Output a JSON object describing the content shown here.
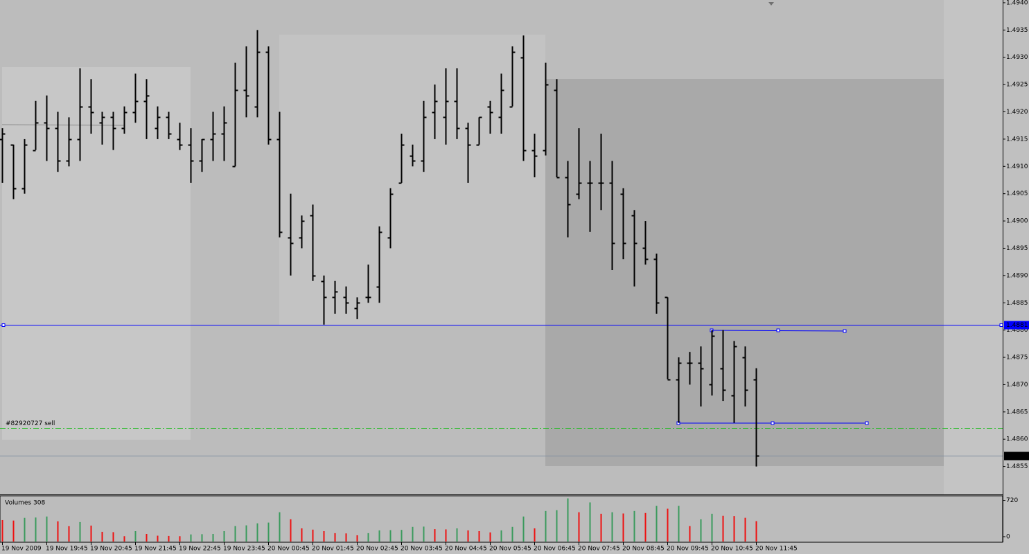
{
  "chart_data": {
    "type": "ohlc",
    "categories": [
      "19 Nov 2009",
      null,
      null,
      null,
      "19 Nov 19:45",
      null,
      null,
      null,
      "19 Nov 20:45",
      null,
      null,
      null,
      "19 Nov 21:45",
      null,
      null,
      null,
      "19 Nov 22:45",
      null,
      null,
      null,
      "19 Nov 23:45",
      null,
      null,
      null,
      "20 Nov 00:45",
      null,
      null,
      null,
      "20 Nov 01:45",
      null,
      null,
      null,
      "20 Nov 02:45",
      null,
      null,
      null,
      "20 Nov 03:45",
      null,
      null,
      null,
      "20 Nov 04:45",
      null,
      null,
      null,
      "20 Nov 05:45",
      null,
      null,
      null,
      "20 Nov 06:45",
      null,
      null,
      null,
      "20 Nov 07:45",
      null,
      null,
      null,
      "20 Nov 08:45",
      null,
      null,
      null,
      "20 Nov 09:45",
      null,
      null,
      null,
      "20 Nov 10:45",
      null,
      null,
      null,
      "20 Nov 11:45"
    ],
    "open": [
      1.4915,
      1.4914,
      1.4906,
      1.4913,
      1.4918,
      1.4917,
      1.4911,
      1.4915,
      1.4921,
      1.4918,
      1.4919,
      1.4917,
      1.492,
      1.4922,
      1.4917,
      1.4919,
      1.4915,
      1.4914,
      1.4911,
      1.4915,
      1.4916,
      1.491,
      1.4924,
      1.4921,
      1.4931,
      1.4915,
      1.4897,
      1.4897,
      1.4901,
      1.4889,
      1.4886,
      1.4886,
      1.4884,
      1.4886,
      1.4888,
      1.4897,
      1.4907,
      1.4912,
      1.4911,
      1.492,
      1.4919,
      1.4922,
      1.4917,
      1.4914,
      1.4921,
      1.4919,
      1.4921,
      1.493,
      1.4913,
      1.4913,
      1.4924,
      1.4908,
      1.4905,
      1.4907,
      1.4907,
      1.4907,
      1.4905,
      1.4901,
      1.4895,
      1.4893,
      1.4886,
      1.4871,
      1.4874,
      1.4874,
      1.487,
      1.4873,
      1.4868,
      1.4875,
      1.4871
    ],
    "high": [
      1.4917,
      1.4914,
      1.4915,
      1.4922,
      1.4923,
      1.492,
      1.4919,
      1.4928,
      1.4926,
      1.492,
      1.492,
      1.4921,
      1.4927,
      1.4926,
      1.4921,
      1.492,
      1.4918,
      1.4917,
      1.4915,
      1.492,
      1.4921,
      1.4929,
      1.4932,
      1.4935,
      1.4932,
      1.492,
      1.4905,
      1.4901,
      1.4903,
      1.489,
      1.4889,
      1.4888,
      1.4886,
      1.4892,
      1.4899,
      1.4906,
      1.4916,
      1.4914,
      1.4922,
      1.4925,
      1.4928,
      1.4928,
      1.4918,
      1.4919,
      1.4922,
      1.4927,
      1.4932,
      1.4934,
      1.4916,
      1.4929,
      1.4926,
      1.4911,
      1.4917,
      1.4911,
      1.4916,
      1.4911,
      1.4906,
      1.4902,
      1.49,
      1.4894,
      1.4886,
      1.4875,
      1.4876,
      1.4877,
      1.488,
      1.488,
      1.4878,
      1.4877,
      1.4873
    ],
    "low": [
      1.4907,
      1.4904,
      1.4905,
      1.4913,
      1.4911,
      1.4909,
      1.491,
      1.4911,
      1.4916,
      1.4914,
      1.4913,
      1.4916,
      1.4918,
      1.4915,
      1.4915,
      1.4915,
      1.4913,
      1.4907,
      1.4909,
      1.4911,
      1.4911,
      1.491,
      1.4919,
      1.4919,
      1.4914,
      1.4897,
      1.489,
      1.4895,
      1.4889,
      1.4881,
      1.4883,
      1.4883,
      1.4882,
      1.4885,
      1.4885,
      1.4895,
      1.4907,
      1.491,
      1.4909,
      1.4915,
      1.4914,
      1.4915,
      1.4907,
      1.4914,
      1.4916,
      1.4916,
      1.4921,
      1.4911,
      1.4908,
      1.4912,
      1.4908,
      1.4897,
      1.4904,
      1.4898,
      1.4902,
      1.4891,
      1.4893,
      1.4888,
      1.4892,
      1.4883,
      1.4871,
      1.4863,
      1.487,
      1.4866,
      1.4868,
      1.4867,
      1.4863,
      1.4866,
      1.4855
    ],
    "close": [
      1.4916,
      1.4906,
      1.4914,
      1.4918,
      1.4917,
      1.4911,
      1.4915,
      1.4921,
      1.492,
      1.4919,
      1.4917,
      1.492,
      1.4922,
      1.4923,
      1.4919,
      1.4916,
      1.4914,
      1.4911,
      1.4915,
      1.4916,
      1.4918,
      1.4924,
      1.4923,
      1.4931,
      1.4915,
      1.4898,
      1.4896,
      1.49,
      1.489,
      1.4886,
      1.4887,
      1.4885,
      1.4885,
      1.4886,
      1.4898,
      1.4905,
      1.4914,
      1.4911,
      1.4919,
      1.4922,
      1.4922,
      1.4917,
      1.4914,
      1.4919,
      1.492,
      1.4924,
      1.4931,
      1.4913,
      1.4912,
      1.4925,
      1.4908,
      1.4903,
      1.4907,
      1.4907,
      1.4907,
      1.4896,
      1.4896,
      1.4896,
      1.4893,
      1.4885,
      1.4871,
      1.4874,
      1.4874,
      1.4873,
      1.4879,
      1.4869,
      1.4877,
      1.4869,
      1.4857
    ],
    "color": "#000000",
    "ylim": [
      1.485,
      1.49405
    ],
    "yticks": [
      {
        "value": 1.494,
        "label": "1.4940"
      },
      1.4935,
      {
        "value": 1.493,
        "label": "1.4930"
      },
      1.4925,
      {
        "value": 1.492,
        "label": "1.4920"
      },
      1.4915,
      {
        "value": 1.491,
        "label": "1.4910"
      },
      1.4905,
      {
        "value": 1.49,
        "label": "1.4900"
      },
      1.4895,
      {
        "value": 1.489,
        "label": "1.4890"
      },
      1.4885,
      {
        "value": 1.488,
        "label": "1.4880"
      },
      1.4875,
      {
        "value": 1.487,
        "label": "1.4870"
      },
      1.4865,
      {
        "value": 1.486,
        "label": "1.4860"
      },
      1.4855
    ],
    "price_line": {
      "value": 1.4881,
      "color": "#0000ff"
    },
    "bid_line": {
      "value": 1.4857,
      "color": "#7f8fa0"
    },
    "order_line": {
      "label": "#82920727 sell",
      "value": 1.4862,
      "color": "#22bb22"
    },
    "volume": {
      "title": "Volumes 308",
      "values": [
        330,
        320,
        374,
        380,
        400,
        305,
        208,
        290,
        220,
        97,
        90,
        10,
        110,
        55,
        20,
        15,
        10,
        45,
        50,
        55,
        110,
        210,
        225,
        265,
        280,
        485,
        345,
        165,
        140,
        110,
        70,
        65,
        28,
        70,
        125,
        130,
        135,
        195,
        200,
        150,
        145,
        165,
        125,
        110,
        85,
        125,
        195,
        400,
        165,
        510,
        525,
        760,
        485,
        680,
        455,
        485,
        460,
        510,
        470,
        610,
        555,
        610,
        210,
        345,
        455,
        415,
        410,
        375,
        308
      ],
      "up_color": "#3a9a5c",
      "down_color": "#ee1111",
      "ylim": [
        0,
        810
      ],
      "yticks": [
        0,
        720
      ]
    }
  }
}
